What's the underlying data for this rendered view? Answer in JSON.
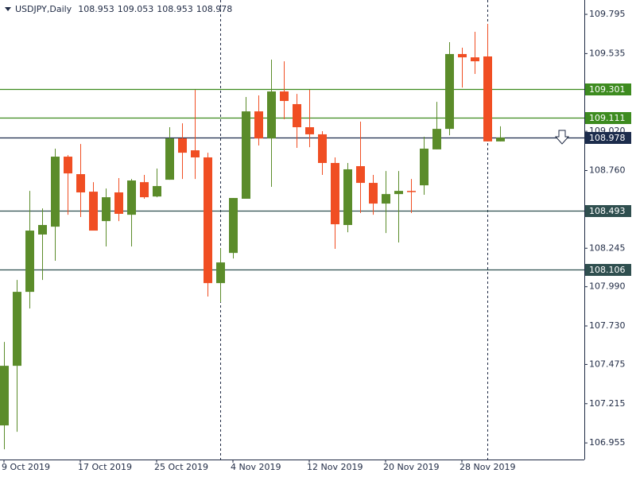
{
  "chart_data": {
    "type": "candlestick",
    "title": "USDJPY,Daily",
    "categories": [
      "9 Oct 2019",
      null,
      null,
      null,
      null,
      null,
      "17 Oct 2019",
      null,
      null,
      null,
      null,
      null,
      "25 Oct 2019",
      null,
      null,
      null,
      null,
      null,
      "4 Nov 2019",
      null,
      null,
      null,
      null,
      null,
      "12 Nov 2019",
      null,
      null,
      null,
      null,
      null,
      "20 Nov 2019",
      null,
      null,
      null,
      null,
      null,
      "28 Nov 2019",
      null,
      null,
      null
    ],
    "open": [
      107.071,
      107.466,
      107.956,
      108.336,
      108.388,
      108.852,
      108.736,
      108.62,
      108.425,
      108.615,
      108.467,
      108.683,
      108.588,
      108.699,
      108.973,
      108.894,
      108.847,
      108.014,
      108.214,
      108.573,
      109.152,
      108.973,
      109.284,
      109.2,
      109.047,
      109.0,
      108.81,
      108.399,
      108.789,
      108.678,
      108.541,
      108.604,
      108.625,
      108.662,
      108.9,
      109.036,
      109.532,
      109.51,
      109.516,
      108.953
    ],
    "high": [
      107.624,
      108.035,
      108.625,
      108.509,
      108.905,
      108.862,
      108.936,
      108.683,
      108.641,
      108.71,
      108.704,
      108.731,
      108.773,
      109.047,
      109.073,
      109.295,
      108.878,
      108.246,
      108.578,
      109.247,
      109.258,
      109.495,
      109.484,
      109.268,
      109.295,
      109.021,
      108.847,
      108.81,
      109.084,
      108.731,
      108.757,
      108.757,
      108.704,
      108.984,
      109.215,
      109.611,
      109.574,
      109.679,
      109.732,
      109.053
    ],
    "low": [
      106.913,
      107.029,
      107.846,
      108.035,
      108.162,
      108.467,
      108.452,
      108.362,
      108.257,
      108.425,
      108.257,
      108.573,
      108.583,
      108.699,
      108.704,
      108.704,
      107.925,
      107.888,
      108.177,
      108.573,
      108.926,
      108.652,
      109.1,
      108.91,
      108.915,
      108.731,
      108.241,
      108.351,
      108.478,
      108.467,
      108.346,
      108.283,
      108.478,
      108.599,
      108.9,
      108.994,
      109.31,
      109.4,
      108.953,
      108.953
    ],
    "close": [
      107.466,
      107.956,
      108.362,
      108.399,
      108.852,
      108.741,
      108.615,
      108.362,
      108.583,
      108.473,
      108.694,
      108.583,
      108.657,
      108.973,
      108.878,
      108.847,
      108.014,
      108.151,
      108.578,
      109.152,
      108.973,
      109.284,
      109.221,
      109.047,
      109.0,
      108.81,
      108.404,
      108.768,
      108.678,
      108.541,
      108.604,
      108.625,
      108.62,
      108.905,
      109.036,
      109.532,
      109.51,
      109.484,
      108.953,
      108.978
    ],
    "up_color": "#5b8c2a",
    "down_color": "#f04e23",
    "ylim": [
      106.845,
      109.89
    ],
    "yticks": [
      109.795,
      109.535,
      {
        "value": 109.02,
        "label": "109.020"
      },
      {
        "value": 108.76,
        "label": "108.760"
      },
      108.245,
      {
        "value": 107.99,
        "label": "107.990"
      },
      {
        "value": 107.73,
        "label": "107.730"
      },
      107.475,
      107.215,
      106.955
    ],
    "levels": [
      {
        "value": 109.301,
        "color": "#3d8b1f"
      },
      {
        "value": 109.111,
        "color": "#3d8b1f"
      },
      {
        "value": 108.978,
        "color": "#1c2c4c"
      },
      {
        "value": 108.493,
        "color": "#2f4f4f"
      },
      {
        "value": 108.106,
        "color": "#2f4f4f"
      }
    ]
  }
}
